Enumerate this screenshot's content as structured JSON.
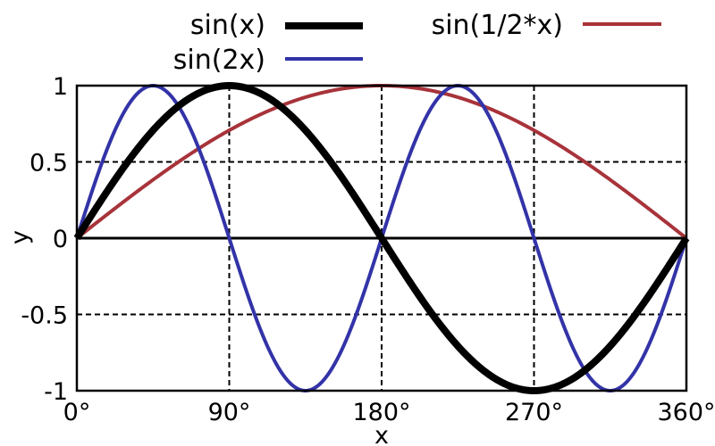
{
  "chart_data": {
    "type": "line",
    "xlabel": "x",
    "ylabel": "y",
    "xlim": [
      0,
      360
    ],
    "ylim": [
      -1,
      1
    ],
    "x_ticks": [
      {
        "value": 0,
        "label": "0°"
      },
      {
        "value": 90,
        "label": "90°"
      },
      {
        "value": 180,
        "label": "180°"
      },
      {
        "value": 270,
        "label": "270°"
      },
      {
        "value": 360,
        "label": "360°"
      }
    ],
    "y_ticks": [
      {
        "value": 1,
        "label": "1"
      },
      {
        "value": 0.5,
        "label": "0.5"
      },
      {
        "value": 0,
        "label": "0"
      },
      {
        "value": -0.5,
        "label": "-0.5"
      },
      {
        "value": -1,
        "label": "-1"
      }
    ],
    "grid": true,
    "legend_position": "top",
    "series": [
      {
        "name": "sin(x)",
        "function": "sin(x)",
        "frequency": 1,
        "color": "#000000"
      },
      {
        "name": "sin(2x)",
        "function": "sin(2x)",
        "frequency": 2,
        "color": "#3333a8"
      },
      {
        "name": "sin(1/2*x)",
        "function": "sin(x/2)",
        "frequency": 0.5,
        "color": "#a8333a"
      }
    ]
  }
}
